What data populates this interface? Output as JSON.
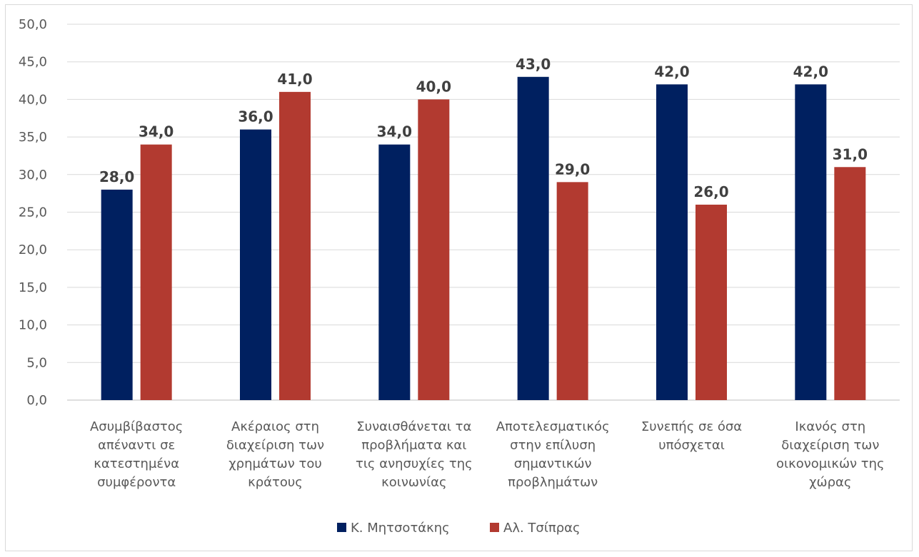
{
  "chart_data": {
    "type": "bar",
    "categories": [
      [
        "Ασυμβίβαστος",
        "απέναντι σε",
        "κατεστημένα",
        "συμφέροντα"
      ],
      [
        "Ακέραιος στη",
        "διαχείριση των",
        "χρημάτων του",
        "κράτους"
      ],
      [
        "Συναισθάνεται τα",
        "προβλήματα και",
        "τις ανησυχίες της",
        "κοινωνίας"
      ],
      [
        "Αποτελεσματικός",
        "στην επίλυση",
        "σημαντικών",
        "προβλημάτων"
      ],
      [
        "Συνεπής σε όσα",
        "υπόσχεται"
      ],
      [
        "Ικανός στη",
        "διαχείριση των",
        "οικονομικών της",
        "χώρας"
      ]
    ],
    "series": [
      {
        "name": "Κ. Μητσοτάκης",
        "color": "#002060",
        "values": [
          28.0,
          36.0,
          34.0,
          43.0,
          42.0,
          42.0
        ]
      },
      {
        "name": "Αλ. Τσίπρας",
        "color": "#B23A30",
        "values": [
          34.0,
          41.0,
          40.0,
          29.0,
          26.0,
          31.0
        ]
      }
    ],
    "ylim": [
      0,
      50
    ],
    "yticks": [
      "0,0",
      "5,0",
      "10,0",
      "15,0",
      "20,0",
      "25,0",
      "30,0",
      "35,0",
      "40,0",
      "45,0",
      "50,0"
    ],
    "grid": true,
    "legend": "bottom-center",
    "title": "",
    "xlabel": "",
    "ylabel": ""
  }
}
